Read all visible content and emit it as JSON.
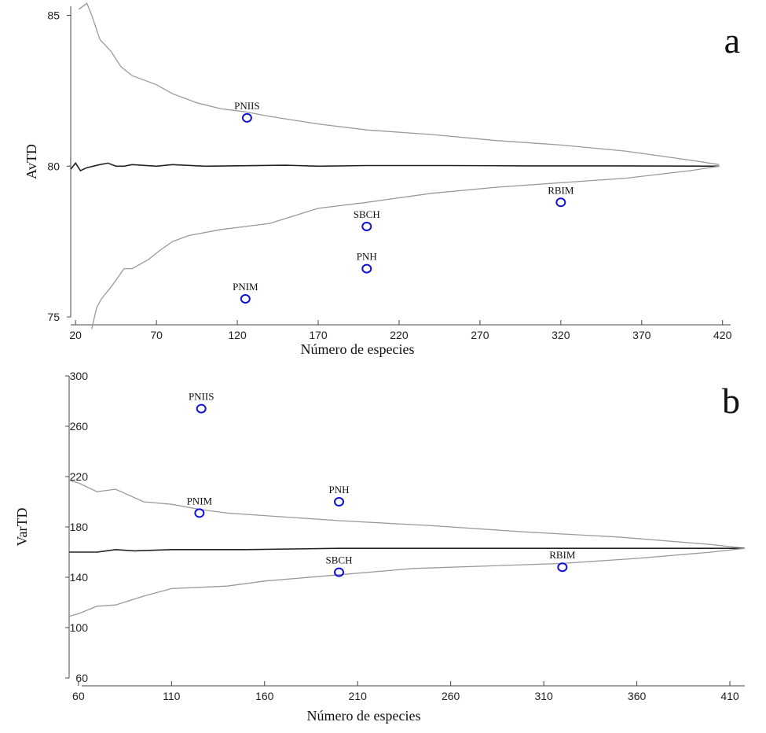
{
  "chart_data": [
    {
      "panel": "a",
      "type": "line",
      "panel_label": "a",
      "xlabel": "Número de especies",
      "ylabel": "AvTD",
      "xlim": [
        17,
        425
      ],
      "ylim": [
        75,
        85.3
      ],
      "xticks": [
        20,
        70,
        120,
        170,
        220,
        270,
        320,
        370,
        420
      ],
      "yticks": [
        75,
        80,
        85
      ],
      "series": [
        {
          "name": "upper",
          "x": [
            22,
            27,
            30,
            35,
            42,
            48,
            55,
            70,
            80,
            95,
            110,
            125,
            140,
            170,
            200,
            240,
            280,
            320,
            360,
            400,
            418
          ],
          "y": [
            85.2,
            85.4,
            85,
            84.2,
            83.8,
            83.3,
            83,
            82.7,
            82.4,
            82.1,
            81.9,
            81.8,
            81.65,
            81.4,
            81.2,
            81.05,
            80.85,
            80.7,
            80.5,
            80.2,
            80.05
          ]
        },
        {
          "name": "mean",
          "x": [
            17,
            20,
            23,
            27,
            35,
            40,
            45,
            50,
            55,
            70,
            80,
            100,
            150,
            170,
            200,
            250,
            300,
            350,
            418
          ],
          "y": [
            79.9,
            80.1,
            79.85,
            79.95,
            80.05,
            80.1,
            80,
            80,
            80.05,
            80,
            80.05,
            80,
            80.03,
            80,
            80.02,
            80.02,
            80.01,
            80.01,
            80
          ]
        },
        {
          "name": "lower",
          "x": [
            30,
            33,
            36,
            42,
            50,
            55,
            65,
            72,
            80,
            90,
            110,
            125,
            140,
            170,
            200,
            240,
            280,
            320,
            360,
            400,
            418
          ],
          "y": [
            74.6,
            75.3,
            75.6,
            76,
            76.6,
            76.6,
            76.9,
            77.2,
            77.5,
            77.7,
            77.9,
            78,
            78.1,
            78.6,
            78.8,
            79.1,
            79.3,
            79.45,
            79.6,
            79.85,
            80
          ]
        }
      ],
      "points": [
        {
          "label": "PNIIS",
          "x": 126,
          "y": 81.6
        },
        {
          "label": "PNIM",
          "x": 125,
          "y": 75.6
        },
        {
          "label": "SBCH",
          "x": 200,
          "y": 78
        },
        {
          "label": "PNH",
          "x": 200,
          "y": 76.6
        },
        {
          "label": "RBIM",
          "x": 320,
          "y": 78.8
        }
      ]
    },
    {
      "panel": "b",
      "type": "line",
      "panel_label": "b",
      "xlabel": "Número de especies",
      "ylabel": "VarTD",
      "xlim": [
        55,
        418
      ],
      "ylim": [
        60,
        300
      ],
      "xticks": [
        60,
        110,
        160,
        210,
        260,
        310,
        360,
        410
      ],
      "yticks": [
        60,
        100,
        140,
        180,
        220,
        260,
        300
      ],
      "series": [
        {
          "name": "upper",
          "x": [
            55,
            60,
            70,
            80,
            95,
            110,
            125,
            140,
            160,
            200,
            250,
            300,
            350,
            400,
            418
          ],
          "y": [
            217,
            215,
            208,
            210,
            200,
            198,
            194,
            191,
            189,
            185,
            181,
            176,
            172,
            166,
            163
          ]
        },
        {
          "name": "mean",
          "x": [
            55,
            70,
            80,
            90,
            110,
            150,
            200,
            250,
            300,
            350,
            400,
            418
          ],
          "y": [
            160,
            160,
            162,
            161,
            162,
            162,
            163,
            163,
            163,
            163,
            163,
            163
          ]
        },
        {
          "name": "lower",
          "x": [
            55,
            60,
            70,
            80,
            95,
            110,
            125,
            140,
            160,
            200,
            240,
            280,
            320,
            360,
            400,
            418
          ],
          "y": [
            109,
            111,
            117,
            118,
            125,
            131,
            132,
            133,
            137,
            142,
            147,
            149,
            151,
            155,
            160,
            163
          ]
        }
      ],
      "points": [
        {
          "label": "PNIIS",
          "x": 126,
          "y": 274
        },
        {
          "label": "PNIM",
          "x": 125,
          "y": 191
        },
        {
          "label": "PNH",
          "x": 200,
          "y": 200
        },
        {
          "label": "SBCH",
          "x": 200,
          "y": 144
        },
        {
          "label": "RBIM",
          "x": 320,
          "y": 148
        }
      ]
    }
  ]
}
